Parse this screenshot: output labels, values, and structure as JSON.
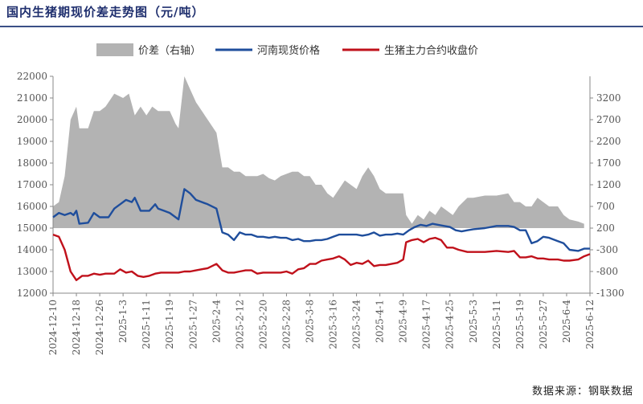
{
  "title": "国内生猪期现价差走势图（元/吨）",
  "source": "数据来源：钢联数据",
  "chart_data": {
    "type": "line",
    "title": "国内生猪期现价差走势图（元/吨）",
    "legend": [
      "价差（右轴）",
      "河南现货价格",
      "生猪主力合约收盘价"
    ],
    "legend_position": "top",
    "x_tick_labels": [
      "2024-12-10",
      "2024-12-18",
      "2024-12-26",
      "2025-1-3",
      "2025-1-11",
      "2025-1-19",
      "2025-1-27",
      "2025-2-4",
      "2025-2-12",
      "2025-2-20",
      "2025-2-28",
      "2025-3-8",
      "2025-3-16",
      "2025-3-24",
      "2025-4-1",
      "2025-4-9",
      "2025-4-17",
      "2025-4-25",
      "2025-5-3",
      "2025-5-11",
      "2025-5-19",
      "2025-5-27",
      "2025-6-4",
      "2025-6-12"
    ],
    "y_left_ticks": [
      12000,
      13000,
      14000,
      15000,
      16000,
      17000,
      18000,
      19000,
      20000,
      21000,
      22000
    ],
    "y_right_ticks": [
      -1300,
      -800,
      -300,
      200,
      700,
      1200,
      1700,
      2200,
      2700,
      3200
    ],
    "ylim_left": [
      12000,
      22000
    ],
    "ylim_right": [
      -1300,
      3700
    ],
    "colors": {
      "basis": "#b3b3b3",
      "spot": "#1f4e9c",
      "futures": "#c0111b"
    },
    "series": [
      {
        "name": "价差（右轴）",
        "axis": "right",
        "kind": "area",
        "points": [
          [
            "2024-12-10",
            700
          ],
          [
            "2024-12-12",
            800
          ],
          [
            "2024-12-14",
            1400
          ],
          [
            "2024-12-16",
            2700
          ],
          [
            "2024-12-18",
            3000
          ],
          [
            "2024-12-19",
            2500
          ],
          [
            "2024-12-22",
            2500
          ],
          [
            "2024-12-24",
            2900
          ],
          [
            "2024-12-26",
            2900
          ],
          [
            "2024-12-28",
            3000
          ],
          [
            "2024-12-31",
            3300
          ],
          [
            "2025-1-3",
            3200
          ],
          [
            "2025-1-5",
            3300
          ],
          [
            "2025-1-7",
            2800
          ],
          [
            "2025-1-9",
            3000
          ],
          [
            "2025-1-11",
            2800
          ],
          [
            "2025-1-13",
            3000
          ],
          [
            "2025-1-15",
            2900
          ],
          [
            "2025-1-17",
            2900
          ],
          [
            "2025-1-19",
            2900
          ],
          [
            "2025-1-21",
            2600
          ],
          [
            "2025-1-22",
            2500
          ],
          [
            "2025-1-24",
            3700
          ],
          [
            "2025-1-26",
            3400
          ],
          [
            "2025-1-28",
            3100
          ],
          [
            "2025-2-1",
            2700
          ],
          [
            "2025-2-4",
            2400
          ],
          [
            "2025-2-6",
            1600
          ],
          [
            "2025-2-8",
            1600
          ],
          [
            "2025-2-10",
            1500
          ],
          [
            "2025-2-12",
            1500
          ],
          [
            "2025-2-14",
            1400
          ],
          [
            "2025-2-16",
            1400
          ],
          [
            "2025-2-18",
            1400
          ],
          [
            "2025-2-20",
            1450
          ],
          [
            "2025-2-22",
            1350
          ],
          [
            "2025-2-24",
            1300
          ],
          [
            "2025-2-26",
            1400
          ],
          [
            "2025-2-28",
            1450
          ],
          [
            "2025-3-2",
            1500
          ],
          [
            "2025-3-4",
            1500
          ],
          [
            "2025-3-6",
            1400
          ],
          [
            "2025-3-8",
            1400
          ],
          [
            "2025-3-10",
            1200
          ],
          [
            "2025-3-12",
            1200
          ],
          [
            "2025-3-14",
            1000
          ],
          [
            "2025-3-16",
            900
          ],
          [
            "2025-3-18",
            1100
          ],
          [
            "2025-3-20",
            1300
          ],
          [
            "2025-3-22",
            1200
          ],
          [
            "2025-3-24",
            1100
          ],
          [
            "2025-3-26",
            1400
          ],
          [
            "2025-3-28",
            1600
          ],
          [
            "2025-3-30",
            1400
          ],
          [
            "2025-4-1",
            1100
          ],
          [
            "2025-4-3",
            1000
          ],
          [
            "2025-4-5",
            1000
          ],
          [
            "2025-4-7",
            1000
          ],
          [
            "2025-4-9",
            1000
          ],
          [
            "2025-4-10",
            500
          ],
          [
            "2025-4-12",
            300
          ],
          [
            "2025-4-14",
            500
          ],
          [
            "2025-4-16",
            400
          ],
          [
            "2025-4-18",
            600
          ],
          [
            "2025-4-20",
            500
          ],
          [
            "2025-4-22",
            700
          ],
          [
            "2025-4-24",
            600
          ],
          [
            "2025-4-26",
            500
          ],
          [
            "2025-4-28",
            700
          ],
          [
            "2025-5-1",
            900
          ],
          [
            "2025-5-3",
            900
          ],
          [
            "2025-5-7",
            950
          ],
          [
            "2025-5-11",
            950
          ],
          [
            "2025-5-15",
            1000
          ],
          [
            "2025-5-17",
            800
          ],
          [
            "2025-5-19",
            800
          ],
          [
            "2025-5-21",
            700
          ],
          [
            "2025-5-23",
            700
          ],
          [
            "2025-5-25",
            900
          ],
          [
            "2025-5-27",
            800
          ],
          [
            "2025-5-29",
            700
          ],
          [
            "2025-6-1",
            700
          ],
          [
            "2025-6-3",
            500
          ],
          [
            "2025-6-5",
            400
          ],
          [
            "2025-6-8",
            350
          ],
          [
            "2025-6-10",
            300
          ]
        ]
      },
      {
        "name": "河南现货价格",
        "axis": "left",
        "kind": "line",
        "points": [
          [
            "2024-12-10",
            15500
          ],
          [
            "2024-12-12",
            15700
          ],
          [
            "2024-12-14",
            15600
          ],
          [
            "2024-12-16",
            15700
          ],
          [
            "2024-12-17",
            15600
          ],
          [
            "2024-12-18",
            15800
          ],
          [
            "2024-12-19",
            15200
          ],
          [
            "2024-12-22",
            15250
          ],
          [
            "2024-12-24",
            15700
          ],
          [
            "2024-12-26",
            15500
          ],
          [
            "2024-12-29",
            15500
          ],
          [
            "2024-12-31",
            15900
          ],
          [
            "2025-1-2",
            16100
          ],
          [
            "2025-1-4",
            16300
          ],
          [
            "2025-1-6",
            16200
          ],
          [
            "2025-1-7",
            16400
          ],
          [
            "2025-1-8",
            16100
          ],
          [
            "2025-1-9",
            15800
          ],
          [
            "2025-1-11",
            15800
          ],
          [
            "2025-1-12",
            15800
          ],
          [
            "2025-1-14",
            16100
          ],
          [
            "2025-1-15",
            15900
          ],
          [
            "2025-1-17",
            15800
          ],
          [
            "2025-1-19",
            15700
          ],
          [
            "2025-1-21",
            15500
          ],
          [
            "2025-1-22",
            15400
          ],
          [
            "2025-1-24",
            16800
          ],
          [
            "2025-1-26",
            16600
          ],
          [
            "2025-1-28",
            16300
          ],
          [
            "2025-2-1",
            16100
          ],
          [
            "2025-2-4",
            15900
          ],
          [
            "2025-2-6",
            14800
          ],
          [
            "2025-2-8",
            14700
          ],
          [
            "2025-2-10",
            14450
          ],
          [
            "2025-2-12",
            14800
          ],
          [
            "2025-2-14",
            14700
          ],
          [
            "2025-2-16",
            14700
          ],
          [
            "2025-2-18",
            14600
          ],
          [
            "2025-2-20",
            14600
          ],
          [
            "2025-2-22",
            14550
          ],
          [
            "2025-2-24",
            14600
          ],
          [
            "2025-2-26",
            14550
          ],
          [
            "2025-2-28",
            14550
          ],
          [
            "2025-3-2",
            14450
          ],
          [
            "2025-3-4",
            14500
          ],
          [
            "2025-3-6",
            14400
          ],
          [
            "2025-3-8",
            14400
          ],
          [
            "2025-3-10",
            14450
          ],
          [
            "2025-3-12",
            14450
          ],
          [
            "2025-3-14",
            14500
          ],
          [
            "2025-3-16",
            14600
          ],
          [
            "2025-3-18",
            14700
          ],
          [
            "2025-3-20",
            14700
          ],
          [
            "2025-3-22",
            14700
          ],
          [
            "2025-3-24",
            14700
          ],
          [
            "2025-3-26",
            14650
          ],
          [
            "2025-3-28",
            14700
          ],
          [
            "2025-3-30",
            14800
          ],
          [
            "2025-4-1",
            14650
          ],
          [
            "2025-4-3",
            14700
          ],
          [
            "2025-4-5",
            14700
          ],
          [
            "2025-4-7",
            14750
          ],
          [
            "2025-4-9",
            14700
          ],
          [
            "2025-4-11",
            14900
          ],
          [
            "2025-4-13",
            15050
          ],
          [
            "2025-4-15",
            15150
          ],
          [
            "2025-4-17",
            15100
          ],
          [
            "2025-4-19",
            15200
          ],
          [
            "2025-4-21",
            15150
          ],
          [
            "2025-4-23",
            15100
          ],
          [
            "2025-4-25",
            15050
          ],
          [
            "2025-4-27",
            14900
          ],
          [
            "2025-4-29",
            14850
          ],
          [
            "2025-5-1",
            14900
          ],
          [
            "2025-5-3",
            14950
          ],
          [
            "2025-5-7",
            15000
          ],
          [
            "2025-5-11",
            15100
          ],
          [
            "2025-5-15",
            15100
          ],
          [
            "2025-5-17",
            15050
          ],
          [
            "2025-5-19",
            14900
          ],
          [
            "2025-5-21",
            14900
          ],
          [
            "2025-5-23",
            14300
          ],
          [
            "2025-5-25",
            14400
          ],
          [
            "2025-5-27",
            14600
          ],
          [
            "2025-5-29",
            14550
          ],
          [
            "2025-6-1",
            14400
          ],
          [
            "2025-6-3",
            14300
          ],
          [
            "2025-6-5",
            14000
          ],
          [
            "2025-6-8",
            13950
          ],
          [
            "2025-6-10",
            14050
          ],
          [
            "2025-6-12",
            14050
          ]
        ]
      },
      {
        "name": "生猪主力合约收盘价",
        "axis": "left",
        "kind": "line",
        "points": [
          [
            "2024-12-10",
            14700
          ],
          [
            "2024-12-12",
            14600
          ],
          [
            "2024-12-14",
            14000
          ],
          [
            "2024-12-16",
            13000
          ],
          [
            "2024-12-18",
            12600
          ],
          [
            "2024-12-20",
            12800
          ],
          [
            "2024-12-22",
            12800
          ],
          [
            "2024-12-24",
            12900
          ],
          [
            "2024-12-26",
            12850
          ],
          [
            "2024-12-28",
            12900
          ],
          [
            "2024-12-31",
            12900
          ],
          [
            "2025-1-2",
            13100
          ],
          [
            "2025-1-4",
            12950
          ],
          [
            "2025-1-6",
            13000
          ],
          [
            "2025-1-8",
            12800
          ],
          [
            "2025-1-10",
            12750
          ],
          [
            "2025-1-12",
            12800
          ],
          [
            "2025-1-14",
            12900
          ],
          [
            "2025-1-16",
            12950
          ],
          [
            "2025-1-18",
            12950
          ],
          [
            "2025-1-20",
            12950
          ],
          [
            "2025-1-22",
            12950
          ],
          [
            "2025-1-24",
            13000
          ],
          [
            "2025-1-26",
            13000
          ],
          [
            "2025-1-28",
            13050
          ],
          [
            "2025-2-1",
            13150
          ],
          [
            "2025-2-4",
            13350
          ],
          [
            "2025-2-6",
            13050
          ],
          [
            "2025-2-8",
            12950
          ],
          [
            "2025-2-10",
            12950
          ],
          [
            "2025-2-12",
            13000
          ],
          [
            "2025-2-14",
            13050
          ],
          [
            "2025-2-16",
            13050
          ],
          [
            "2025-2-18",
            12900
          ],
          [
            "2025-2-20",
            12950
          ],
          [
            "2025-2-22",
            12950
          ],
          [
            "2025-2-24",
            12950
          ],
          [
            "2025-2-26",
            12950
          ],
          [
            "2025-2-28",
            13000
          ],
          [
            "2025-3-2",
            12900
          ],
          [
            "2025-3-4",
            13100
          ],
          [
            "2025-3-6",
            13150
          ],
          [
            "2025-3-8",
            13350
          ],
          [
            "2025-3-10",
            13350
          ],
          [
            "2025-3-12",
            13500
          ],
          [
            "2025-3-14",
            13550
          ],
          [
            "2025-3-16",
            13600
          ],
          [
            "2025-3-18",
            13700
          ],
          [
            "2025-3-20",
            13550
          ],
          [
            "2025-3-22",
            13300
          ],
          [
            "2025-3-24",
            13400
          ],
          [
            "2025-3-26",
            13350
          ],
          [
            "2025-3-28",
            13500
          ],
          [
            "2025-3-30",
            13250
          ],
          [
            "2025-4-1",
            13300
          ],
          [
            "2025-4-3",
            13300
          ],
          [
            "2025-4-5",
            13350
          ],
          [
            "2025-4-7",
            13400
          ],
          [
            "2025-4-9",
            13550
          ],
          [
            "2025-4-10",
            14350
          ],
          [
            "2025-4-12",
            14450
          ],
          [
            "2025-4-14",
            14500
          ],
          [
            "2025-4-16",
            14350
          ],
          [
            "2025-4-18",
            14500
          ],
          [
            "2025-4-20",
            14550
          ],
          [
            "2025-4-22",
            14450
          ],
          [
            "2025-4-24",
            14100
          ],
          [
            "2025-4-26",
            14100
          ],
          [
            "2025-4-28",
            14000
          ],
          [
            "2025-5-1",
            13900
          ],
          [
            "2025-5-3",
            13900
          ],
          [
            "2025-5-7",
            13900
          ],
          [
            "2025-5-11",
            13950
          ],
          [
            "2025-5-15",
            13900
          ],
          [
            "2025-5-17",
            13950
          ],
          [
            "2025-5-19",
            13650
          ],
          [
            "2025-5-21",
            13650
          ],
          [
            "2025-5-23",
            13700
          ],
          [
            "2025-5-25",
            13600
          ],
          [
            "2025-5-27",
            13600
          ],
          [
            "2025-5-29",
            13550
          ],
          [
            "2025-6-1",
            13550
          ],
          [
            "2025-6-3",
            13500
          ],
          [
            "2025-6-5",
            13500
          ],
          [
            "2025-6-8",
            13550
          ],
          [
            "2025-6-10",
            13700
          ],
          [
            "2025-6-12",
            13800
          ]
        ]
      }
    ]
  }
}
